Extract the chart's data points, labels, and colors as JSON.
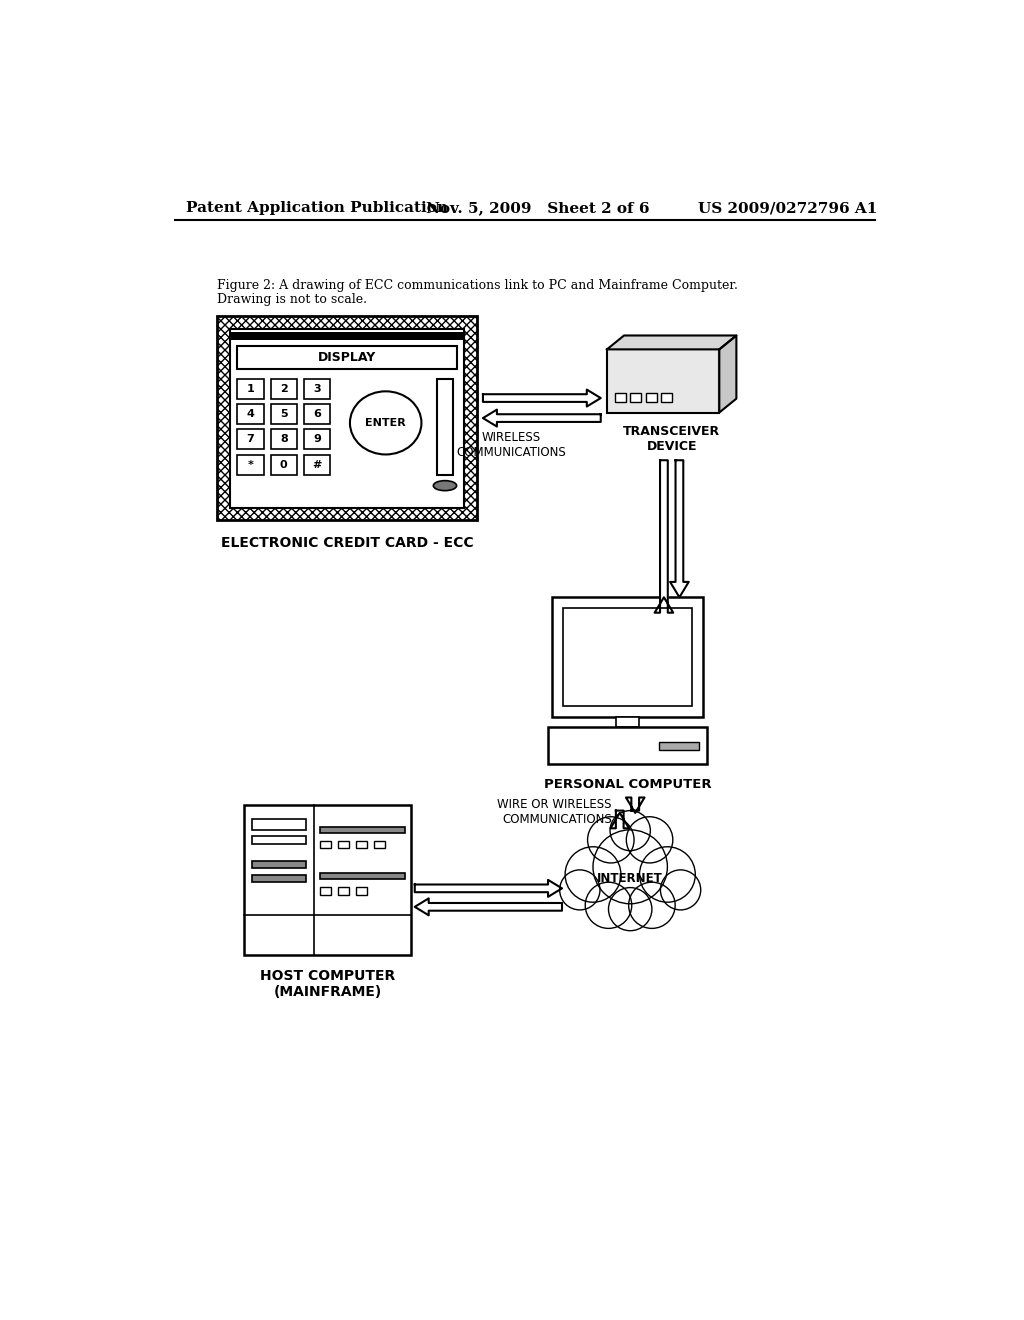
{
  "title_left": "Patent Application Publication",
  "title_mid": "Nov. 5, 2009   Sheet 2 of 6",
  "title_right": "US 2009/0272796 A1",
  "caption_line1": "Figure 2: A drawing of ECC communications link to PC and Mainframe Computer.",
  "caption_line2": "Drawing is not to scale.",
  "ecc_label": "ELECTRONIC CREDIT CARD - ECC",
  "wireless_label": "WIRELESS\nCOMMUNICATIONS",
  "transceiver_label": "TRANSCEIVER\nDEVICE",
  "pc_label": "PERSONAL COMPUTER",
  "wire_label": "WIRE OR WIRELESS\nCOMMUNICATIONS",
  "internet_label": "INTERNET",
  "host_label": "HOST COMPUTER\n(MAINFRAME)",
  "bg_color": "#ffffff"
}
